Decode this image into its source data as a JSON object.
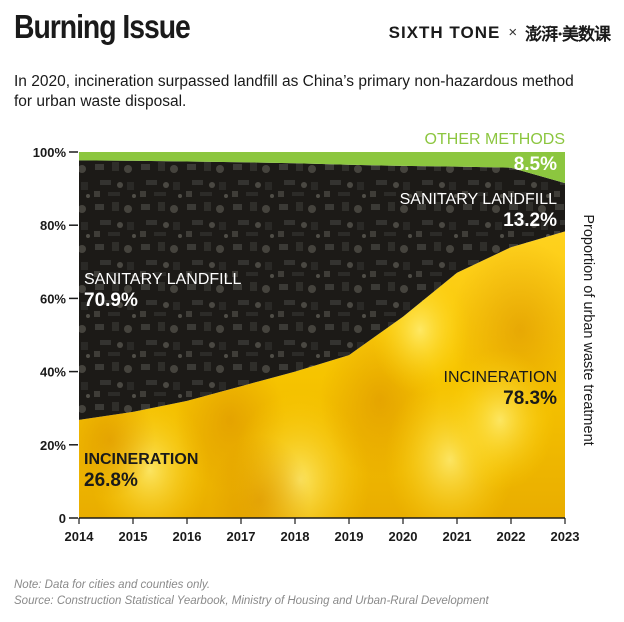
{
  "header": {
    "title": "Burning Issue",
    "brand_sixth_tone": "SIXTH TONE",
    "brand_separator": "×",
    "brand_partner": "澎湃·美数课",
    "subtitle": "In 2020, incineration surpassed landfill as China’s primary non-hazardous method for urban waste disposal."
  },
  "footer": {
    "note": "Note: Data for cities and counties only.",
    "source": "Source: Construction Statistical Yearbook, Ministry of Housing and Urban-Rural Development"
  },
  "colors": {
    "incineration": "#f2c200",
    "landfill": "#1c1a17",
    "other": "#8cc63f"
  },
  "chart_data": {
    "type": "area",
    "stacked": true,
    "x": [
      2014,
      2015,
      2016,
      2017,
      2018,
      2019,
      2020,
      2021,
      2022,
      2023
    ],
    "series": [
      {
        "name": "INCINERATION",
        "values": [
          26.8,
          29.0,
          32.0,
          36.0,
          40.0,
          44.5,
          55.0,
          67.0,
          74.0,
          78.3
        ]
      },
      {
        "name": "SANITARY LANDFILL",
        "values": [
          70.9,
          68.6,
          65.4,
          61.2,
          56.9,
          52.0,
          41.2,
          29.0,
          21.7,
          13.2
        ]
      },
      {
        "name": "OTHER METHODS",
        "values": [
          2.3,
          2.4,
          2.6,
          2.8,
          3.1,
          3.5,
          3.8,
          4.0,
          4.3,
          8.5
        ]
      }
    ],
    "ylabel": "Proportion of urban waste treatment",
    "ylim": [
      0,
      100
    ],
    "yticks": [
      "0",
      "20%",
      "40%",
      "60%",
      "80%",
      "100%"
    ],
    "annotations": {
      "incineration_2014": {
        "name": "INCINERATION",
        "value": "26.8%"
      },
      "landfill_2014": {
        "name": "SANITARY LANDFILL",
        "value": "70.9%"
      },
      "incineration_2023": {
        "name": "INCINERATION",
        "value": "78.3%"
      },
      "landfill_2023": {
        "name": "SANITARY LANDFILL",
        "value": "13.2%"
      },
      "other_2023": {
        "name": "OTHER METHODS",
        "value": "8.5%"
      }
    }
  }
}
